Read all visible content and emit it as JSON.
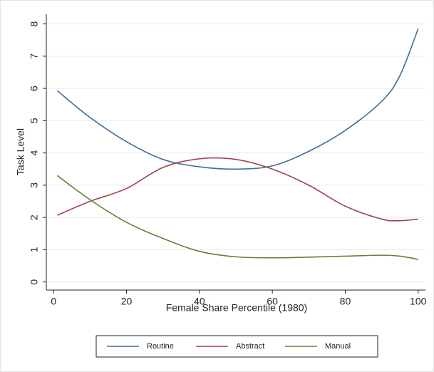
{
  "chart_data": {
    "type": "line",
    "x_label": "Female Share Percentile (1980)",
    "y_label": "Task Level",
    "x": [
      1,
      10,
      20,
      30,
      40,
      50,
      60,
      70,
      80,
      90,
      95,
      100
    ],
    "series": [
      {
        "name": "Routine",
        "color": "#3e6e9c",
        "values": [
          5.93,
          5.1,
          4.35,
          3.8,
          3.57,
          3.5,
          3.6,
          4.05,
          4.7,
          5.6,
          6.4,
          7.85
        ]
      },
      {
        "name": "Abstract",
        "color": "#a0434d",
        "values": [
          2.07,
          2.5,
          2.9,
          3.55,
          3.82,
          3.8,
          3.5,
          3.0,
          2.35,
          1.95,
          1.9,
          1.95
        ]
      },
      {
        "name": "Manual",
        "color": "#62813a",
        "values": [
          3.3,
          2.55,
          1.85,
          1.35,
          0.95,
          0.78,
          0.75,
          0.77,
          0.8,
          0.83,
          0.8,
          0.7
        ]
      }
    ],
    "xlim": [
      -2,
      102
    ],
    "xticks": [
      0,
      20,
      40,
      60,
      80,
      100
    ],
    "ylim": [
      -0.25,
      8.3
    ],
    "yticks": [
      0,
      1,
      2,
      3,
      4,
      5,
      6,
      7,
      8
    ],
    "grid": true,
    "legend": "bottom"
  }
}
